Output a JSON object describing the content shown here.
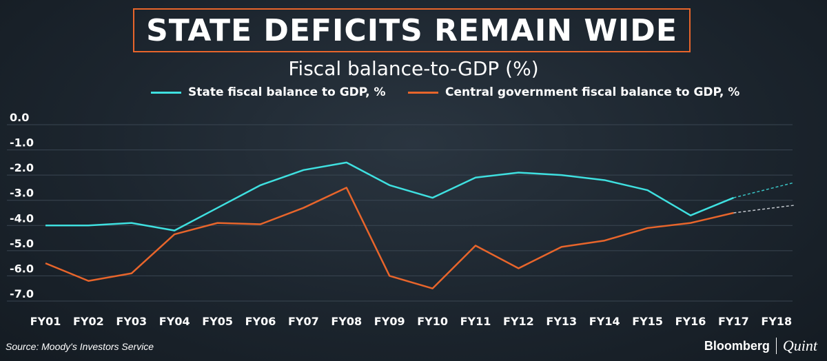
{
  "header": {
    "title": "STATE DEFICITS REMAIN WIDE"
  },
  "chart_data": {
    "type": "line",
    "title": "Fiscal balance-to-GDP (%)",
    "categories": [
      "FY01",
      "FY02",
      "FY03",
      "FY04",
      "FY05",
      "FY06",
      "FY07",
      "FY08",
      "FY09",
      "FY10",
      "FY11",
      "FY12",
      "FY13",
      "FY14",
      "FY15",
      "FY16",
      "FY17",
      "FY18"
    ],
    "y_ticks": [
      "0.0",
      "-1.0",
      "-2.0",
      "-3.0",
      "-4.0",
      "-5.0",
      "-6.0",
      "-7.0"
    ],
    "ylim": [
      -7,
      0
    ],
    "grid": true,
    "legend_position": "top",
    "series": [
      {
        "name": "State fiscal balance to GDP, %",
        "color": "#3fe0e0",
        "values": [
          -4.0,
          -4.0,
          -3.9,
          -4.2,
          -3.3,
          -2.4,
          -1.8,
          -1.5,
          -2.4,
          -2.9,
          -2.1,
          -1.9,
          -2.0,
          -2.2,
          -2.6,
          -3.6,
          -2.9,
          null
        ],
        "projection": {
          "from": "FY17",
          "to": "FY18",
          "values": [
            -2.9,
            -2.3
          ]
        }
      },
      {
        "name": "Central government fiscal balance to GDP, %",
        "color": "#e8652b",
        "values": [
          -5.5,
          -6.2,
          -5.9,
          -4.35,
          -3.9,
          -3.95,
          -3.3,
          -2.5,
          -6.0,
          -6.5,
          -4.8,
          -5.7,
          -4.85,
          -4.6,
          -4.1,
          -3.9,
          -3.5,
          null
        ],
        "projection": {
          "from": "FY17",
          "to": "FY18",
          "values": [
            -3.5,
            -3.2
          ]
        }
      }
    ]
  },
  "footer": {
    "source": "Source: Moody's Investors Service",
    "brand_left": "Bloomberg",
    "brand_right": "Quint"
  }
}
